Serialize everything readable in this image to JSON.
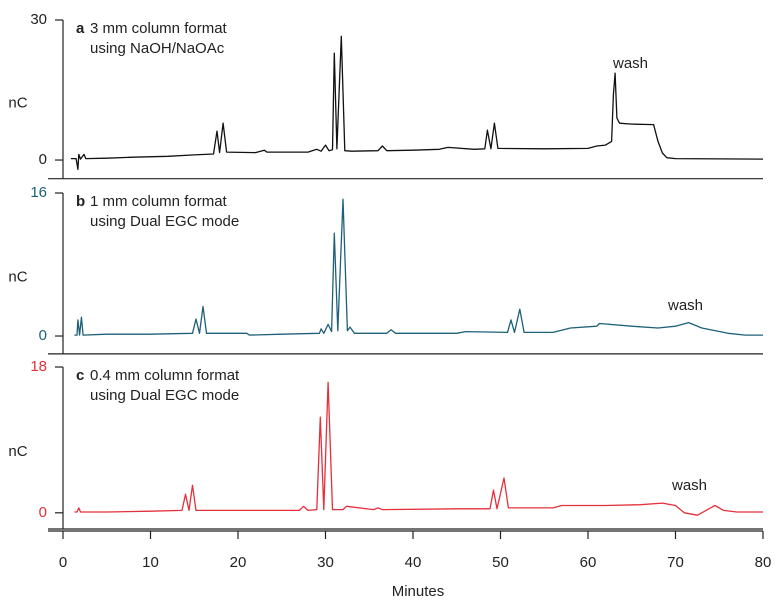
{
  "chart_data": [
    {
      "type": "line",
      "label": "a",
      "title": [
        "3 mm column format",
        "using NaOH/NaOAc"
      ],
      "annotation": "wash",
      "ylabel": "nC",
      "color": "#111111",
      "xlim": [
        0,
        80
      ],
      "ylim": [
        -4,
        30
      ],
      "yticks": [
        0,
        30
      ],
      "x": [
        0.9,
        1.5,
        1.7,
        1.8,
        2,
        2.4,
        2.6,
        5,
        8,
        12,
        15,
        17.2,
        17.6,
        17.9,
        18.3,
        18.7,
        22,
        23,
        23.3,
        28,
        29,
        29.5,
        30,
        30.4,
        30.8,
        31,
        31.3,
        31.8,
        32.2,
        33,
        36,
        36.5,
        37,
        40,
        43,
        44,
        47,
        48.2,
        48.5,
        48.9,
        49.3,
        49.7,
        55,
        60,
        61,
        62,
        62.7,
        62.9,
        63.1,
        63.3,
        63.6,
        65,
        67.5,
        68,
        68.5,
        69,
        70,
        80
      ],
      "values": [
        0.3,
        0.3,
        -2,
        1.2,
        0.2,
        1.2,
        0.3,
        0.4,
        0.6,
        0.8,
        1.1,
        1.3,
        6.2,
        1.6,
        7.9,
        1.7,
        1.6,
        2.1,
        1.7,
        1.7,
        2.3,
        1.9,
        3.2,
        2,
        2.2,
        22.9,
        2.4,
        26.5,
        2,
        1.9,
        2,
        3,
        2,
        2.1,
        2.3,
        2.7,
        2.3,
        2.4,
        6.4,
        2.4,
        7.9,
        2.5,
        2.4,
        2.5,
        3,
        3.2,
        4,
        14,
        18.6,
        9,
        7.9,
        7.7,
        7.6,
        4,
        1.5,
        0.5,
        0.3,
        0.2
      ]
    },
    {
      "type": "line",
      "label": "b",
      "title": [
        "1 mm column format",
        "using Dual EGC mode"
      ],
      "annotation": "wash",
      "ylabel": "nC",
      "color": "#1e6078",
      "xlim": [
        0,
        80
      ],
      "ylim": [
        -2,
        16
      ],
      "yticks": [
        0,
        16
      ],
      "x": [
        1.3,
        1.6,
        1.7,
        1.9,
        2.1,
        2.3,
        5,
        10,
        14.8,
        15.2,
        15.6,
        16,
        16.4,
        21,
        21.3,
        25,
        29.3,
        29.5,
        29.8,
        30.3,
        30.7,
        31,
        31.4,
        32,
        32.5,
        32.8,
        33.3,
        37,
        37.5,
        38,
        45,
        46,
        50.8,
        51.2,
        51.6,
        52.2,
        52.7,
        56,
        58,
        61,
        61.3,
        65,
        68,
        70,
        71.5,
        73,
        76,
        78,
        80
      ],
      "values": [
        0.1,
        0.1,
        1.8,
        0.1,
        2.1,
        0.1,
        0.2,
        0.2,
        0.3,
        1.9,
        0.3,
        3.3,
        0.3,
        0.3,
        0.1,
        0.2,
        0.3,
        0.8,
        0.3,
        1.3,
        0.5,
        11.5,
        0.6,
        15.3,
        0.6,
        1,
        0.3,
        0.3,
        0.7,
        0.3,
        0.3,
        0.5,
        0.4,
        1.8,
        0.4,
        3,
        0.4,
        0.4,
        0.9,
        1.1,
        1.4,
        1.1,
        0.9,
        1.1,
        1.5,
        0.9,
        0.3,
        0.1,
        0.1
      ]
    },
    {
      "type": "line",
      "label": "c",
      "title": [
        "0.4 mm column format",
        "using Dual EGC mode"
      ],
      "annotation": "wash",
      "ylabel": "nC",
      "color": "#e4303a",
      "xlim": [
        0,
        80
      ],
      "ylim": [
        -2,
        18
      ],
      "yticks": [
        0,
        18
      ],
      "xticks": [
        0,
        10,
        20,
        30,
        40,
        50,
        60,
        70,
        80
      ],
      "xlabel": "Minutes",
      "x": [
        1.3,
        1.6,
        1.8,
        2,
        5,
        10,
        13.6,
        14,
        14.4,
        14.8,
        15.2,
        20,
        27,
        27.5,
        28,
        29,
        29.4,
        29.8,
        30.3,
        30.8,
        32,
        32.4,
        35.5,
        36,
        36.5,
        45,
        48.8,
        49.2,
        49.6,
        50.4,
        50.9,
        56,
        57,
        62,
        66,
        68.5,
        70,
        71,
        72.5,
        73.5,
        74.5,
        75.5,
        77,
        80
      ],
      "values": [
        0.1,
        0.1,
        0.6,
        0.1,
        0.1,
        0.2,
        0.3,
        2.3,
        0.3,
        3.4,
        0.3,
        0.3,
        0.3,
        0.8,
        0.3,
        0.4,
        11.8,
        0.4,
        16.1,
        0.4,
        0.4,
        0.8,
        0.4,
        0.6,
        0.4,
        0.5,
        0.5,
        2.8,
        0.5,
        4.3,
        0.6,
        0.6,
        0.9,
        0.9,
        1,
        1.2,
        0.9,
        0,
        -0.3,
        0.3,
        0.9,
        0.3,
        0.1,
        0.1
      ]
    }
  ]
}
